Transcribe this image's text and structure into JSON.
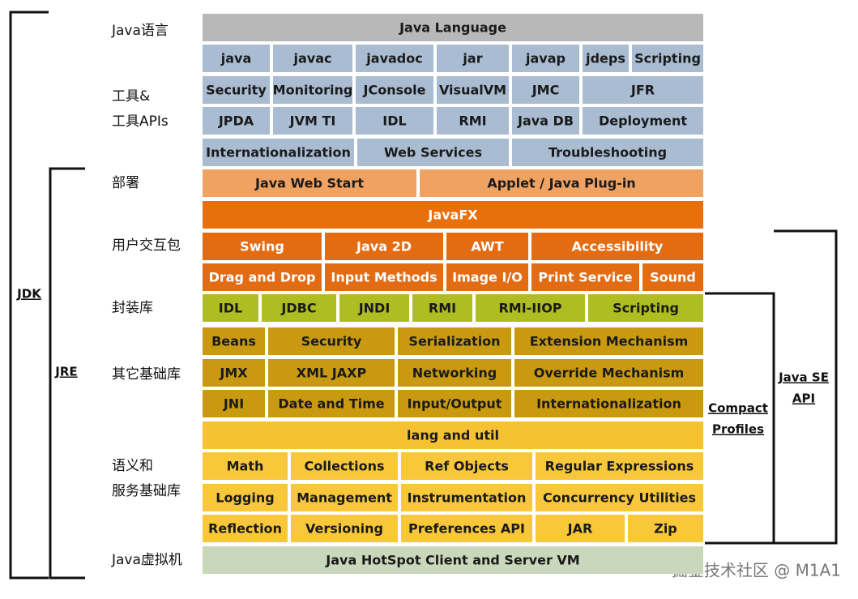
{
  "left_labels": [
    "Java语言",
    "工具&",
    "工具APIs",
    "部署",
    "用户交互包",
    "封装库",
    "其它基础库",
    "语义和",
    "服务基础库",
    "Java虚拟机"
  ],
  "rows": [
    [
      "Java Language"
    ],
    [
      "java",
      "javac",
      "javadoc",
      "jar",
      "javap",
      "jdeps",
      "Scripting"
    ],
    [
      "Security",
      "Monitoring",
      "JConsole",
      "VisualVM",
      "JMC",
      "JFR"
    ],
    [
      "JPDA",
      "JVM TI",
      "IDL",
      "RMI",
      "Java DB",
      "Deployment"
    ],
    [
      "Internationalization",
      "Web Services",
      "Troubleshooting"
    ],
    [
      "Java Web Start",
      "Applet / Java Plug-in"
    ],
    [
      "JavaFX"
    ],
    [
      "Swing",
      "Java 2D",
      "AWT",
      "Accessibility"
    ],
    [
      "Drag and Drop",
      "Input Methods",
      "Image I/O",
      "Print Service",
      "Sound"
    ],
    [
      "IDL",
      "JDBC",
      "JNDI",
      "RMI",
      "RMI-IIOP",
      "Scripting"
    ],
    [
      "Beans",
      "Security",
      "Serialization",
      "Extension Mechanism"
    ],
    [
      "JMX",
      "XML JAXP",
      "Networking",
      "Override Mechanism"
    ],
    [
      "JNI",
      "Date and Time",
      "Input/Output",
      "Internationalization"
    ],
    [
      "lang and util"
    ],
    [
      "Math",
      "Collections",
      "Ref Objects",
      "Regular Expressions"
    ],
    [
      "Logging",
      "Management",
      "Instrumentation",
      "Concurrency Utilities"
    ],
    [
      "Reflection",
      "Versioning",
      "Preferences API",
      "JAR",
      "Zip"
    ],
    [
      "Java HotSpot Client and Server VM"
    ]
  ],
  "brackets": {
    "jdk": "JDK",
    "jre": "JRE",
    "compact_profiles": [
      "Compact",
      "Profiles"
    ],
    "java_se_api": [
      "Java SE",
      "API"
    ]
  },
  "watermark": "掘金技术社区 @ M1A1"
}
